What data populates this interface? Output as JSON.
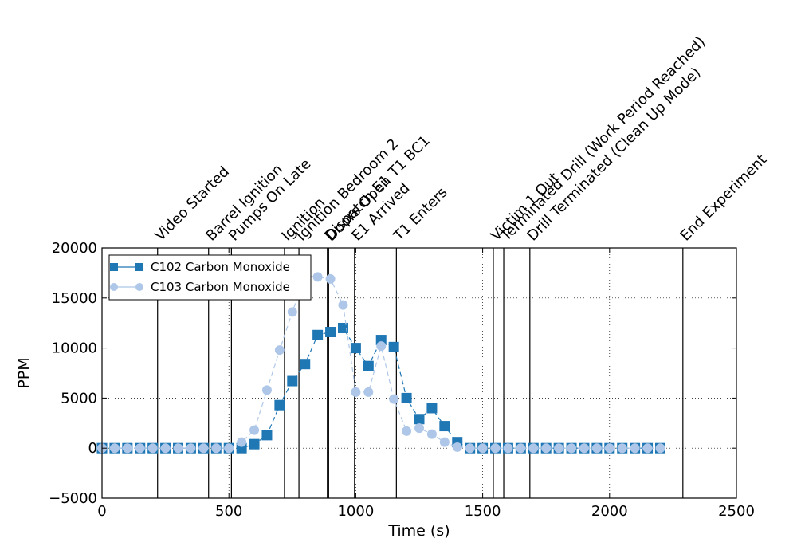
{
  "chart_data": {
    "type": "line",
    "title": "",
    "xlabel": "Time (s)",
    "ylabel": "PPM",
    "xlim": [
      0,
      2500
    ],
    "ylim": [
      -5000,
      20000
    ],
    "xticks": [
      0,
      500,
      1000,
      1500,
      2000,
      2500
    ],
    "yticks": [
      -5000,
      0,
      5000,
      10000,
      15000,
      20000
    ],
    "xtick_labels": [
      "0",
      "500",
      "1000",
      "1500",
      "2000",
      "2500"
    ],
    "ytick_labels": [
      "−5000",
      "0",
      "5000",
      "10000",
      "15000",
      "20000"
    ],
    "grid": true,
    "legend_position": "top-left",
    "series": [
      {
        "name": "C102 Carbon Monoxide",
        "color": "#1f77b4",
        "marker": "square",
        "line": "dashed",
        "x": [
          0,
          50,
          100,
          150,
          200,
          250,
          300,
          350,
          400,
          450,
          500,
          550,
          600,
          650,
          700,
          750,
          800,
          850,
          900,
          950,
          1000,
          1050,
          1100,
          1150,
          1200,
          1250,
          1300,
          1350,
          1400,
          1450,
          1500,
          1550,
          1600,
          1650,
          1700,
          1750,
          1800,
          1850,
          1900,
          1950,
          2000,
          2050,
          2100,
          2150,
          2200
        ],
        "values": [
          0,
          0,
          0,
          0,
          0,
          0,
          0,
          0,
          0,
          0,
          0,
          0,
          400,
          1300,
          4300,
          6700,
          8400,
          11300,
          11600,
          12000,
          10000,
          8200,
          10800,
          10100,
          5000,
          2900,
          4000,
          2200,
          600,
          0,
          0,
          0,
          0,
          0,
          0,
          0,
          0,
          0,
          0,
          0,
          0,
          0,
          0,
          0,
          0
        ]
      },
      {
        "name": "C103 Carbon Monoxide",
        "color": "#aec7e8",
        "marker": "circle",
        "line": "dashed",
        "x": [
          0,
          50,
          100,
          150,
          200,
          250,
          300,
          350,
          400,
          450,
          500,
          550,
          600,
          650,
          700,
          750,
          800,
          850,
          900,
          950,
          1000,
          1050,
          1100,
          1150,
          1200,
          1250,
          1300,
          1350,
          1400,
          1450,
          1500,
          1550,
          1600,
          1650,
          1700,
          1750,
          1800,
          1850,
          1900,
          1950,
          2000,
          2050,
          2100,
          2150,
          2200
        ],
        "values": [
          0,
          0,
          0,
          0,
          0,
          0,
          0,
          0,
          0,
          0,
          0,
          600,
          1800,
          5800,
          9800,
          13600,
          17200,
          17100,
          16900,
          14300,
          5600,
          5600,
          10200,
          4900,
          1700,
          2000,
          1400,
          600,
          100,
          0,
          0,
          0,
          0,
          0,
          0,
          0,
          0,
          0,
          0,
          0,
          0,
          0,
          0,
          0,
          0
        ]
      }
    ],
    "events": [
      {
        "x": 219,
        "label": "Video Started"
      },
      {
        "x": 420,
        "label": "Barrel Ignition"
      },
      {
        "x": 510,
        "label": "Pumps On Late"
      },
      {
        "x": 719,
        "label": "Ignition"
      },
      {
        "x": 776,
        "label": "Ignition Bedroom 2"
      },
      {
        "x": 888,
        "label": "Dispatch E1 T1 BC1"
      },
      {
        "x": 893,
        "label": "Doors Open"
      },
      {
        "x": 995,
        "label": "E1 Arrived"
      },
      {
        "x": 1160,
        "label": "T1 Enters"
      },
      {
        "x": 1542,
        "label": "Victim 1 Out"
      },
      {
        "x": 1583,
        "label": "Terminated Drill (Work Period Reached)"
      },
      {
        "x": 1686,
        "label": "Drill Terminated (Clean Up Mode)"
      },
      {
        "x": 2289,
        "label": "End Experiment"
      }
    ]
  }
}
